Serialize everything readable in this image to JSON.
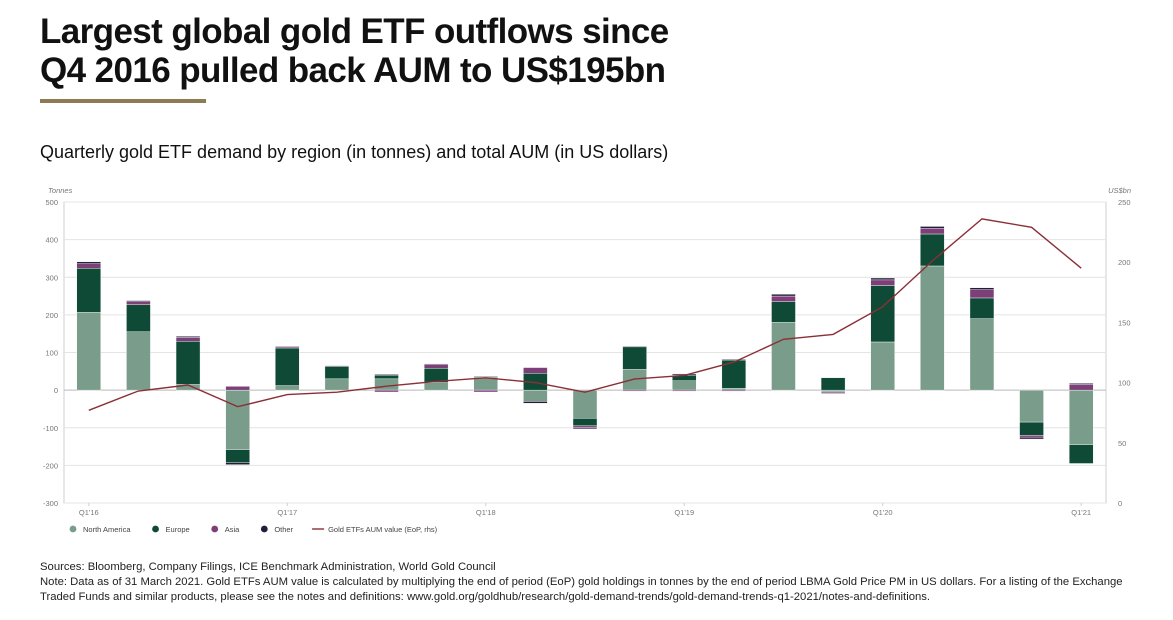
{
  "header": {
    "title_line1": "Largest global gold ETF outflows since",
    "title_line2": "Q4 2016 pulled back AUM to US$195bn",
    "subtitle": "Quarterly gold ETF demand by region (in tonnes) and total AUM (in US dollars)"
  },
  "colors": {
    "north_america": "#7a9d8b",
    "europe": "#0f4a37",
    "asia": "#7d3f78",
    "other": "#241d3a",
    "aum_line": "#8b2f37",
    "grid": "#e4e4e4",
    "axis_text": "#777777",
    "title_rule": "#8c7b55"
  },
  "chart_data": {
    "type": "bar",
    "stacked": true,
    "title": "Quarterly gold ETF demand by region (in tonnes) and total AUM (in US dollars)",
    "ylabel": "Tonnes",
    "y2label": "US$bn",
    "ylim": [
      -300,
      500
    ],
    "y2lim": [
      0,
      250
    ],
    "yticks": [
      500,
      400,
      300,
      200,
      100,
      0,
      -100,
      -200,
      -300
    ],
    "y2ticks": [
      250,
      200,
      150,
      100,
      50,
      0
    ],
    "ytick_labels": [
      "500",
      "400",
      "300",
      "200",
      "100",
      "0",
      "-100",
      "-200",
      "-300"
    ],
    "y2tick_labels": [
      "250",
      "200",
      "150",
      "100",
      "50",
      "0"
    ],
    "categories": [
      "Q1'16",
      "Q2'16",
      "Q3'16",
      "Q4'16",
      "Q1'17",
      "Q2'17",
      "Q3'17",
      "Q4'17",
      "Q1'18",
      "Q2'18",
      "Q3'18",
      "Q4'18",
      "Q1'19",
      "Q2'19",
      "Q3'19",
      "Q4'19",
      "Q1'20",
      "Q2'20",
      "Q3'20",
      "Q4'20",
      "Q1'21"
    ],
    "x_tick_labels": [
      "Q1'16",
      "",
      "",
      "",
      "Q1'17",
      "",
      "",
      "",
      "Q1'18",
      "",
      "",
      "",
      "Q1'19",
      "",
      "",
      "",
      "Q1'20",
      "",
      "",
      "",
      "Q1'21"
    ],
    "series": [
      {
        "name": "North America",
        "color_key": "north_america",
        "values": [
          207,
          155,
          15,
          -158,
          12,
          30,
          30,
          20,
          35,
          -30,
          -75,
          55,
          25,
          5,
          180,
          -5,
          128,
          330,
          190,
          -85,
          -145
        ]
      },
      {
        "name": "Europe",
        "color_key": "europe",
        "values": [
          117,
          72,
          115,
          -35,
          100,
          33,
          10,
          38,
          0,
          45,
          -20,
          60,
          15,
          75,
          55,
          33,
          150,
          85,
          55,
          -35,
          -50
        ]
      },
      {
        "name": "Asia",
        "color_key": "asia",
        "values": [
          12,
          8,
          10,
          10,
          3,
          0,
          -5,
          10,
          -5,
          15,
          -5,
          -3,
          -3,
          -3,
          15,
          -3,
          15,
          15,
          22,
          -5,
          15
        ]
      },
      {
        "name": "Other",
        "color_key": "other",
        "values": [
          5,
          3,
          3,
          -5,
          2,
          2,
          2,
          2,
          2,
          -5,
          -3,
          2,
          3,
          2,
          5,
          -2,
          5,
          5,
          5,
          -5,
          3
        ]
      }
    ],
    "line_series": {
      "name": "Gold ETFs AUM value (EoP, rhs)",
      "axis": "right",
      "values": [
        77,
        93,
        98,
        80,
        90,
        92,
        97,
        101,
        104,
        100,
        92,
        103,
        106,
        117,
        136,
        140,
        163,
        201,
        236,
        229,
        195
      ]
    },
    "legend": [
      {
        "label": "North America",
        "kind": "dot",
        "color_key": "north_america"
      },
      {
        "label": "Europe",
        "kind": "dot",
        "color_key": "europe"
      },
      {
        "label": "Asia",
        "kind": "dot",
        "color_key": "asia"
      },
      {
        "label": "Other",
        "kind": "dot",
        "color_key": "other"
      },
      {
        "label": "Gold ETFs AUM value (EoP, rhs)",
        "kind": "line",
        "color_key": "aum_line"
      }
    ],
    "legend_position": "bottom-left",
    "grid": true
  },
  "footer": {
    "sources": "Sources: Bloomberg, Company Filings, ICE Benchmark Administration, World Gold Council",
    "note": "Note: Data as of 31 March 2021. Gold ETFs AUM value is calculated by multiplying the end of period (EoP) gold holdings in tonnes by the end of period LBMA Gold Price PM in US dollars. For a listing of the Exchange Traded Funds and similar products, please see the notes and definitions: www.gold.org/goldhub/research/gold-demand-trends/gold-demand-trends-q1-2021/notes-and-definitions."
  }
}
